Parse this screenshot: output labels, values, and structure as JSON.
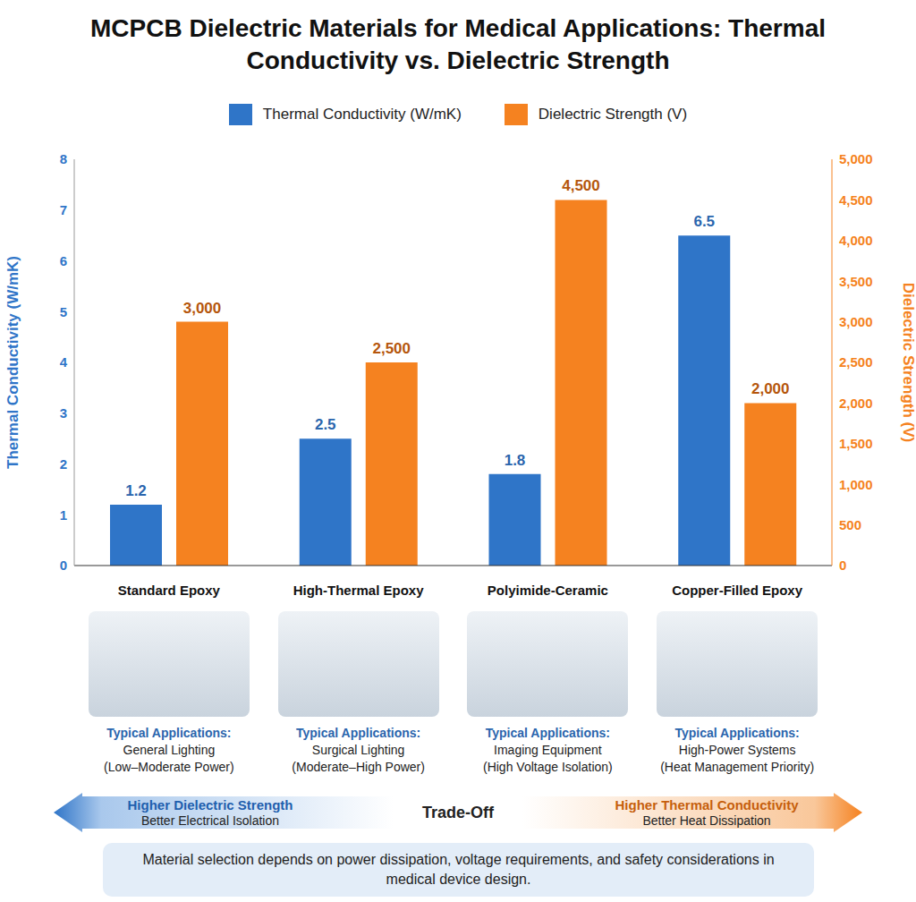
{
  "chart_data": {
    "type": "bar",
    "title": "MCPCB Dielectric Materials for Medical Applications: Thermal Conductivity vs. Dielectric Strength",
    "categories": [
      "Standard Epoxy",
      "High-Thermal Epoxy",
      "Polyimide-Ceramic",
      "Copper-Filled Epoxy"
    ],
    "series": [
      {
        "name": "Thermal Conductivity (W/mK)",
        "color": "#2f75c8",
        "values": [
          1.2,
          2.5,
          1.8,
          6.5
        ]
      },
      {
        "name": "Dielectric Strength (V)",
        "color": "#f58220",
        "axis": "y2",
        "values": [
          3000,
          2500,
          4500,
          2000
        ],
        "value_labels": [
          "3,000",
          "2,500",
          "4,500",
          "2,000"
        ]
      }
    ],
    "ylabel": "Thermal Conductivity (W/mK)",
    "y2label": "Dielectric Strength (V)",
    "ylim": [
      0,
      8
    ],
    "yticks": [
      0,
      1,
      2,
      3,
      4,
      5,
      6,
      7,
      8
    ],
    "y2lim": [
      0,
      5000
    ],
    "y2ticks": [
      0,
      500,
      {
        "value": 1000,
        "label": "1,000"
      },
      {
        "value": 1500,
        "label": "1,500"
      },
      {
        "value": 2000,
        "label": "2,000"
      },
      {
        "value": 2500,
        "label": "2,500"
      },
      {
        "value": 3000,
        "label": "3,000"
      },
      {
        "value": 3500,
        "label": "3,500"
      },
      {
        "value": 4000,
        "label": "4,000"
      },
      {
        "value": 4500,
        "label": "4,500"
      },
      {
        "value": 5000,
        "label": "5,000"
      }
    ],
    "data_labels": true,
    "legend": "top",
    "applications": {
      "heading": "Typical Applications:",
      "items": [
        {
          "text": "General Lighting",
          "note": "(Low–Moderate Power)"
        },
        {
          "text": "Surgical Lighting",
          "note": "(Moderate–High Power)"
        },
        {
          "text": "Imaging Equipment",
          "note": "(High Voltage Isolation)"
        },
        {
          "text": "High-Power Systems",
          "note": "(Heat Management Priority)"
        }
      ]
    },
    "trade_off": {
      "label": "Trade-Off",
      "left": {
        "title": "Higher Dielectric Strength",
        "text": "Better Electrical Isolation"
      },
      "right": {
        "title": "Higher Thermal Conductivity",
        "text": "Better Heat Dissipation"
      }
    },
    "footer": "Material selection depends on power dissipation, voltage requirements, and safety considerations in medical device design."
  }
}
